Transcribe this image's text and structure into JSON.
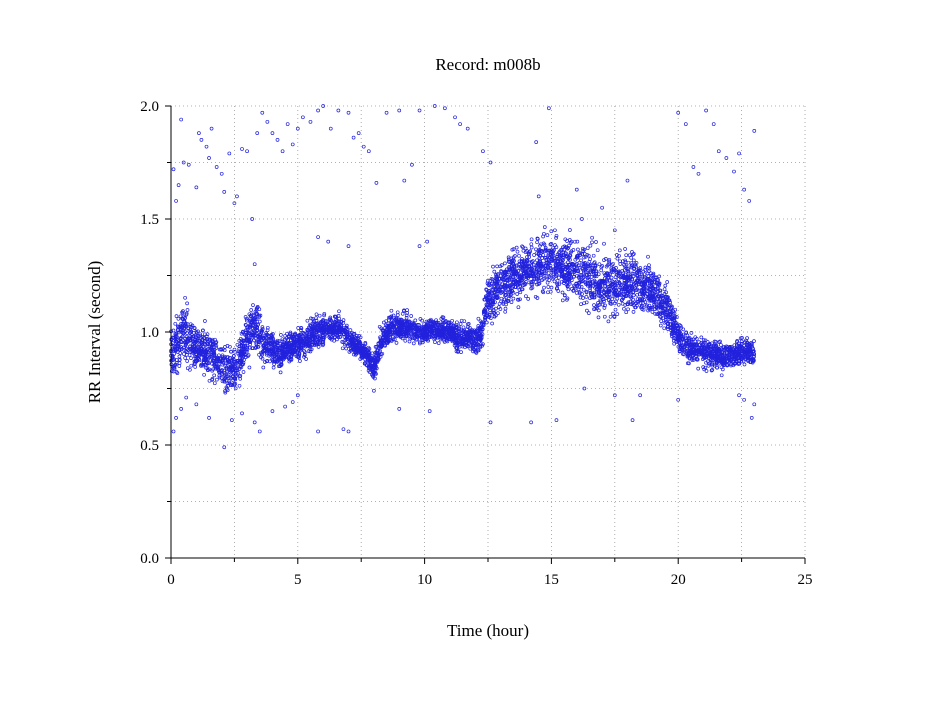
{
  "chart_data": {
    "type": "scatter",
    "title": "Record:  m008b",
    "xlabel": "Time (hour)",
    "ylabel": "RR Interval (second)",
    "xlim": [
      0,
      25
    ],
    "ylim": [
      0.0,
      2.0
    ],
    "x_ticks": [
      0,
      5,
      10,
      15,
      20,
      25
    ],
    "x_tick_labels": [
      "0",
      "5",
      "10",
      "15",
      "20",
      "25"
    ],
    "y_ticks": [
      0.0,
      0.5,
      1.0,
      1.5,
      2.0
    ],
    "y_tick_labels": [
      "0.0",
      "0.5",
      "1.0",
      "1.5",
      "2.0"
    ],
    "grid": true,
    "legend": "none",
    "marker": "open-circle",
    "color": "#2222dd",
    "series": [
      {
        "x": [
          0.0,
          0.25,
          0.5,
          0.75,
          1.0,
          1.25,
          1.5,
          1.75,
          2.0,
          2.25,
          2.5,
          2.75,
          3.0,
          3.25,
          3.5,
          3.75,
          4.0,
          4.25,
          4.5,
          4.75,
          5.0,
          5.25,
          5.5,
          5.75,
          6.0,
          6.25,
          6.5,
          6.75,
          7.0,
          7.25,
          7.5,
          7.75,
          8.0,
          8.25,
          8.5,
          8.75,
          9.0,
          9.25,
          9.5,
          9.75,
          10.0,
          10.25,
          10.5,
          10.75,
          11.0,
          11.25,
          11.5,
          11.75,
          12.0,
          12.25,
          12.5,
          12.75,
          13.0,
          13.25,
          13.5,
          13.75,
          14.0,
          14.25,
          14.5,
          14.75,
          15.0,
          15.25,
          15.5,
          15.75,
          16.0,
          16.25,
          16.5,
          16.75,
          17.0,
          17.25,
          17.5,
          17.75,
          18.0,
          18.25,
          18.5,
          18.75,
          19.0,
          19.25,
          19.5,
          19.75,
          20.0,
          20.25,
          20.5,
          20.75,
          21.0,
          21.25,
          21.5,
          21.75,
          22.0,
          22.25,
          22.5,
          22.75,
          23.0
        ],
        "y_center": [
          0.92,
          0.95,
          1.0,
          0.95,
          0.93,
          0.92,
          0.9,
          0.88,
          0.85,
          0.84,
          0.83,
          0.88,
          0.97,
          1.02,
          0.99,
          0.93,
          0.92,
          0.9,
          0.92,
          0.93,
          0.95,
          0.96,
          0.98,
          1.0,
          1.01,
          1.02,
          1.02,
          1.0,
          0.97,
          0.95,
          0.92,
          0.89,
          0.84,
          0.95,
          1.0,
          1.02,
          1.03,
          1.02,
          1.01,
          1.0,
          1.0,
          1.02,
          1.0,
          1.01,
          1.0,
          0.98,
          0.97,
          0.98,
          0.96,
          1.0,
          1.15,
          1.18,
          1.2,
          1.22,
          1.25,
          1.26,
          1.27,
          1.28,
          1.29,
          1.3,
          1.31,
          1.3,
          1.29,
          1.28,
          1.27,
          1.25,
          1.24,
          1.22,
          1.2,
          1.21,
          1.22,
          1.23,
          1.22,
          1.21,
          1.2,
          1.2,
          1.18,
          1.15,
          1.12,
          1.05,
          0.98,
          0.95,
          0.93,
          0.92,
          0.91,
          0.9,
          0.9,
          0.89,
          0.9,
          0.9,
          0.91,
          0.91,
          0.9
        ],
        "y_spread": [
          0.1,
          0.12,
          0.15,
          0.12,
          0.1,
          0.1,
          0.1,
          0.1,
          0.1,
          0.1,
          0.1,
          0.1,
          0.12,
          0.12,
          0.1,
          0.08,
          0.07,
          0.07,
          0.07,
          0.07,
          0.07,
          0.07,
          0.07,
          0.07,
          0.06,
          0.06,
          0.06,
          0.06,
          0.06,
          0.05,
          0.05,
          0.05,
          0.05,
          0.06,
          0.07,
          0.07,
          0.06,
          0.06,
          0.06,
          0.05,
          0.05,
          0.05,
          0.05,
          0.05,
          0.05,
          0.06,
          0.06,
          0.06,
          0.06,
          0.08,
          0.1,
          0.12,
          0.12,
          0.12,
          0.12,
          0.12,
          0.12,
          0.13,
          0.13,
          0.13,
          0.13,
          0.13,
          0.13,
          0.13,
          0.14,
          0.14,
          0.14,
          0.14,
          0.13,
          0.14,
          0.14,
          0.14,
          0.13,
          0.13,
          0.12,
          0.11,
          0.11,
          0.11,
          0.11,
          0.09,
          0.07,
          0.07,
          0.07,
          0.07,
          0.07,
          0.07,
          0.07,
          0.07,
          0.06,
          0.06,
          0.06,
          0.06,
          0.06
        ]
      }
    ],
    "outliers": [
      [
        0.1,
        1.72
      ],
      [
        0.2,
        1.58
      ],
      [
        0.3,
        1.65
      ],
      [
        0.4,
        1.94
      ],
      [
        0.5,
        1.75
      ],
      [
        0.7,
        1.74
      ],
      [
        1.0,
        1.64
      ],
      [
        1.1,
        1.88
      ],
      [
        1.2,
        1.85
      ],
      [
        1.4,
        1.82
      ],
      [
        1.5,
        1.77
      ],
      [
        1.6,
        1.9
      ],
      [
        1.8,
        1.73
      ],
      [
        2.0,
        1.7
      ],
      [
        2.1,
        1.62
      ],
      [
        2.3,
        1.79
      ],
      [
        2.5,
        1.57
      ],
      [
        2.6,
        1.6
      ],
      [
        2.8,
        1.81
      ],
      [
        3.0,
        1.8
      ],
      [
        3.2,
        1.5
      ],
      [
        3.4,
        1.88
      ],
      [
        3.6,
        1.97
      ],
      [
        3.8,
        1.93
      ],
      [
        4.0,
        1.88
      ],
      [
        4.2,
        1.85
      ],
      [
        4.4,
        1.8
      ],
      [
        4.6,
        1.92
      ],
      [
        4.8,
        1.83
      ],
      [
        5.0,
        1.9
      ],
      [
        5.2,
        1.95
      ],
      [
        5.5,
        1.93
      ],
      [
        5.8,
        1.98
      ],
      [
        6.0,
        2.0
      ],
      [
        6.3,
        1.9
      ],
      [
        6.6,
        1.98
      ],
      [
        7.0,
        1.97
      ],
      [
        7.2,
        1.86
      ],
      [
        7.4,
        1.88
      ],
      [
        7.6,
        1.82
      ],
      [
        7.8,
        1.8
      ],
      [
        8.1,
        1.66
      ],
      [
        8.5,
        1.97
      ],
      [
        9.0,
        1.98
      ],
      [
        9.2,
        1.67
      ],
      [
        9.5,
        1.74
      ],
      [
        9.8,
        1.98
      ],
      [
        10.4,
        2.0
      ],
      [
        10.8,
        1.99
      ],
      [
        11.2,
        1.95
      ],
      [
        11.4,
        1.92
      ],
      [
        11.7,
        1.9
      ],
      [
        12.3,
        1.8
      ],
      [
        12.6,
        1.75
      ],
      [
        14.4,
        1.84
      ],
      [
        14.9,
        1.99
      ],
      [
        16.0,
        1.63
      ],
      [
        17.0,
        1.55
      ],
      [
        18.0,
        1.67
      ],
      [
        20.0,
        1.97
      ],
      [
        20.3,
        1.92
      ],
      [
        20.6,
        1.73
      ],
      [
        20.8,
        1.7
      ],
      [
        21.1,
        1.98
      ],
      [
        21.4,
        1.92
      ],
      [
        21.6,
        1.8
      ],
      [
        21.9,
        1.77
      ],
      [
        22.2,
        1.71
      ],
      [
        22.4,
        1.79
      ],
      [
        22.6,
        1.63
      ],
      [
        22.8,
        1.58
      ],
      [
        23.0,
        1.89
      ],
      [
        0.1,
        0.56
      ],
      [
        0.2,
        0.62
      ],
      [
        0.4,
        0.66
      ],
      [
        0.6,
        0.71
      ],
      [
        1.0,
        0.68
      ],
      [
        1.5,
        0.62
      ],
      [
        2.1,
        0.49
      ],
      [
        2.4,
        0.61
      ],
      [
        2.8,
        0.64
      ],
      [
        3.3,
        0.6
      ],
      [
        3.5,
        0.56
      ],
      [
        4.0,
        0.65
      ],
      [
        4.5,
        0.67
      ],
      [
        4.8,
        0.69
      ],
      [
        5.0,
        0.72
      ],
      [
        5.8,
        0.56
      ],
      [
        6.8,
        0.57
      ],
      [
        7.0,
        0.56
      ],
      [
        8.0,
        0.74
      ],
      [
        9.0,
        0.66
      ],
      [
        10.2,
        0.65
      ],
      [
        12.6,
        0.6
      ],
      [
        14.2,
        0.6
      ],
      [
        15.2,
        0.61
      ],
      [
        16.3,
        0.75
      ],
      [
        17.5,
        0.72
      ],
      [
        18.2,
        0.61
      ],
      [
        18.5,
        0.72
      ],
      [
        20.0,
        0.7
      ],
      [
        22.4,
        0.72
      ],
      [
        22.6,
        0.7
      ],
      [
        22.9,
        0.62
      ],
      [
        23.0,
        0.68
      ],
      [
        3.3,
        1.3
      ],
      [
        5.8,
        1.42
      ],
      [
        6.2,
        1.4
      ],
      [
        7.0,
        1.38
      ],
      [
        10.1,
        1.4
      ],
      [
        9.8,
        1.38
      ],
      [
        14.5,
        1.6
      ],
      [
        16.2,
        1.5
      ],
      [
        17.5,
        1.45
      ]
    ]
  }
}
